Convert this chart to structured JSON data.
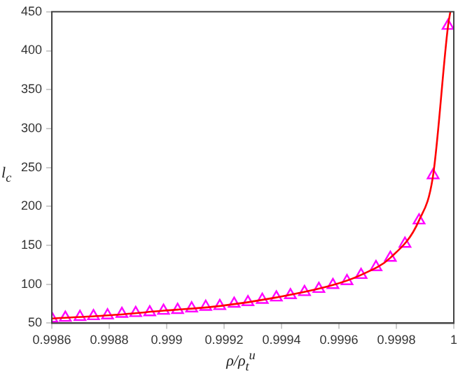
{
  "chart_data": {
    "type": "scatter",
    "xlabel": "ρ/ρ$_{t}$$^{u}$",
    "ylabel": "l$_{c}$",
    "xlim": [
      0.9986,
      1
    ],
    "xticks": [
      0.9986,
      0.9988,
      0.999,
      0.9992,
      0.9994,
      0.9996,
      0.9998,
      1
    ],
    "ylim": [
      50,
      450
    ],
    "yticks": [
      50,
      100,
      150,
      200,
      250,
      300,
      350,
      400,
      450
    ],
    "grid": false,
    "legend": false,
    "series": [
      {
        "color": "#ff00ff",
        "marker": "triangle",
        "x": [
          0.9986,
          0.998647,
          0.998698,
          0.998745,
          0.998794,
          0.998844,
          0.998892,
          0.998941,
          0.998989,
          0.999038,
          0.999087,
          0.999136,
          0.999185,
          0.999235,
          0.999283,
          0.999333,
          0.999382,
          0.999431,
          0.99948,
          0.99953,
          0.999579,
          0.999628,
          0.999677,
          0.999729,
          0.999779,
          0.99983,
          0.999879,
          0.999928,
          0.99998
        ],
        "values": [
          56,
          57,
          58,
          59,
          60,
          62,
          63,
          64,
          66,
          67,
          69,
          71,
          72,
          75,
          77,
          80,
          83,
          86,
          90,
          94,
          99,
          104,
          112,
          122,
          134,
          152,
          182,
          240,
          432
        ]
      },
      {
        "type": "line",
        "color": "#ff0000",
        "marker": "none",
        "x": [
          0.9986,
          0.998794,
          0.998989,
          0.999185,
          0.999382,
          0.999579,
          0.999677,
          0.999779,
          0.999879,
          0.999928,
          0.99998,
          0.999988
        ],
        "values": [
          56,
          60,
          66,
          72,
          83,
          99,
          112,
          134,
          182,
          240,
          432,
          450
        ]
      }
    ]
  }
}
